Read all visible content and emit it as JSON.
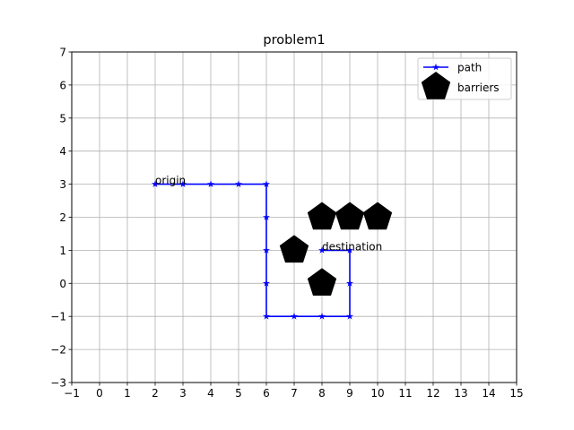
{
  "chart_data": {
    "type": "line",
    "title": "problem1",
    "xlabel": "",
    "ylabel": "",
    "xlim": [
      -1,
      15
    ],
    "ylim": [
      -3,
      7
    ],
    "xticks": [
      -1,
      0,
      1,
      2,
      3,
      4,
      5,
      6,
      7,
      8,
      9,
      10,
      11,
      12,
      13,
      14,
      15
    ],
    "yticks": [
      -3,
      -2,
      -1,
      0,
      1,
      2,
      3,
      4,
      5,
      6,
      7
    ],
    "xtick_labels": [
      "−1",
      "0",
      "1",
      "2",
      "3",
      "4",
      "5",
      "6",
      "7",
      "8",
      "9",
      "10",
      "11",
      "12",
      "13",
      "14",
      "15"
    ],
    "ytick_labels": [
      "−3",
      "−2",
      "−1",
      "0",
      "1",
      "2",
      "3",
      "4",
      "5",
      "6",
      "7"
    ],
    "grid": true,
    "legend_position": "top-right",
    "series": [
      {
        "name": "path",
        "color": "#0000ff",
        "marker": "star",
        "points": [
          [
            2,
            3
          ],
          [
            3,
            3
          ],
          [
            4,
            3
          ],
          [
            5,
            3
          ],
          [
            6,
            3
          ],
          [
            6,
            2
          ],
          [
            6,
            1
          ],
          [
            6,
            0
          ],
          [
            6,
            -1
          ],
          [
            7,
            -1
          ],
          [
            8,
            -1
          ],
          [
            9,
            -1
          ],
          [
            9,
            0
          ],
          [
            9,
            1
          ],
          [
            8,
            1
          ]
        ]
      },
      {
        "name": "barriers",
        "color": "#000000",
        "marker": "pentagon",
        "points": [
          [
            8,
            2
          ],
          [
            9,
            2
          ],
          [
            10,
            2
          ],
          [
            7,
            1
          ],
          [
            8,
            0
          ]
        ]
      }
    ],
    "annotations": [
      {
        "text": "origin",
        "x": 2,
        "y": 3
      },
      {
        "text": "destination",
        "x": 8,
        "y": 1
      }
    ]
  }
}
